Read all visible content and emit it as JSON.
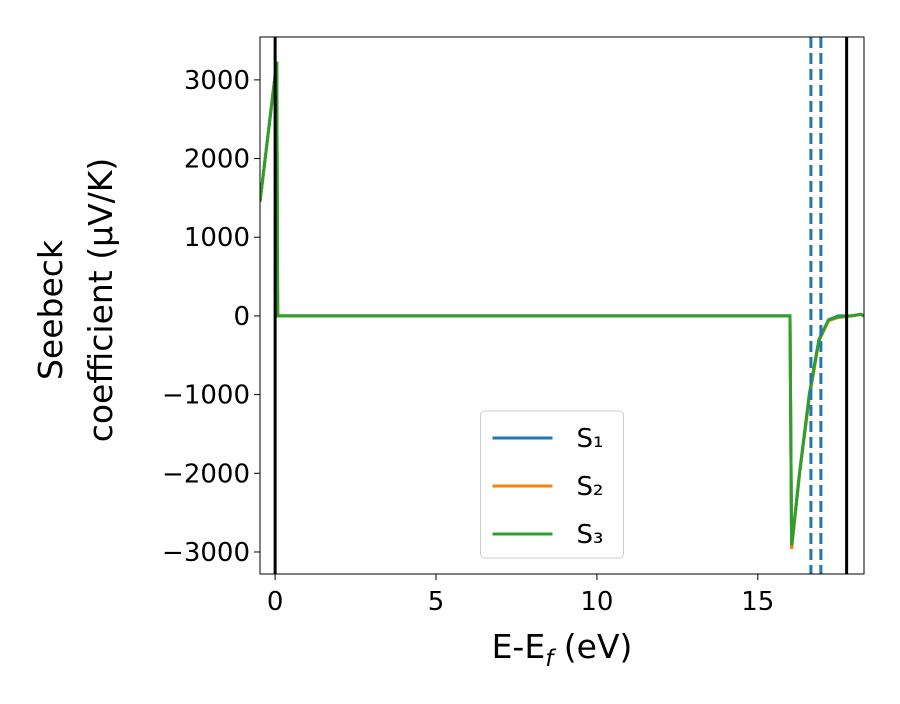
{
  "chart_data": {
    "type": "line",
    "xlabel": {
      "text": "E-E",
      "sub": "f",
      "tail": " (eV)"
    },
    "ylabel": [
      "Seebeck",
      "coefficient  (μV/K)"
    ],
    "x": [
      -0.47,
      0.05,
      0.08,
      16.0,
      16.05,
      16.3,
      16.6,
      16.9,
      17.2,
      17.5,
      17.9,
      18.2,
      18.3
    ],
    "series": [
      {
        "name": "S₁",
        "color": "#1f77b4",
        "values": [
          1450,
          3230,
          0,
          0,
          -2950,
          -2000,
          -1000,
          -300,
          -50,
          0,
          0,
          20,
          0
        ]
      },
      {
        "name": "S₂",
        "color": "#ff7f0e",
        "values": [
          1450,
          3230,
          0,
          0,
          -2960,
          -2000,
          -1050,
          -320,
          -60,
          -20,
          0,
          20,
          0
        ]
      },
      {
        "name": "S₃",
        "color": "#2ca02c",
        "values": [
          1450,
          3230,
          0,
          0,
          -2920,
          -1980,
          -1000,
          -300,
          -50,
          -10,
          0,
          20,
          0
        ]
      }
    ],
    "vlines": {
      "solid": [
        0,
        17.76
      ],
      "solid_color": "#000000",
      "dashed": [
        16.65,
        16.96
      ],
      "dashed_color": "#1f77b4"
    },
    "xlim": [
      -0.47,
      18.3
    ],
    "ylim": [
      -3280,
      3545
    ],
    "xticks": [
      0,
      5,
      10,
      15
    ],
    "yticks": [
      {
        "value": -3000,
        "label": "−3000"
      },
      {
        "value": -2000,
        "label": "−2000"
      },
      {
        "value": -1000,
        "label": "−1000"
      },
      0,
      1000,
      2000,
      3000
    ],
    "legend": "lower center"
  }
}
